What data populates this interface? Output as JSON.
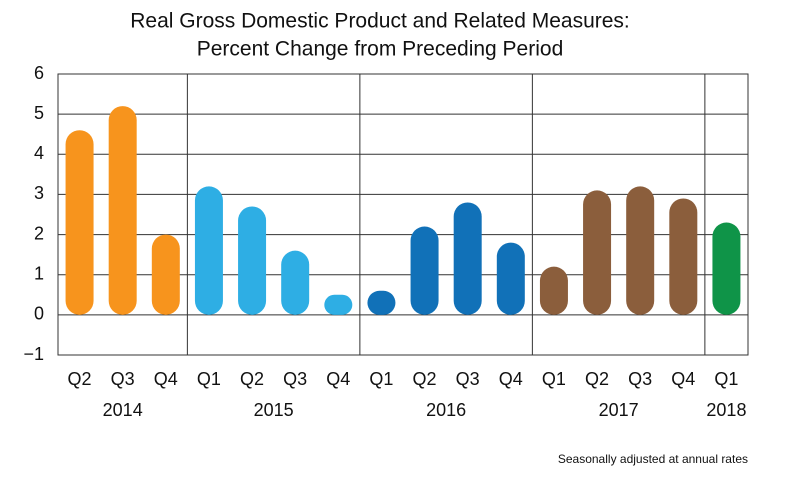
{
  "chart_data": {
    "type": "bar",
    "title": [
      "Real Gross Domestic Product and Related Measures:",
      "Percent Change from Preceding Period"
    ],
    "series": [
      {
        "name": "2014",
        "color": "#f7941d",
        "categories": [
          "Q2",
          "Q3",
          "Q4"
        ],
        "values": [
          4.6,
          5.2,
          2.0
        ]
      },
      {
        "name": "2015",
        "color": "#2eaee4",
        "categories": [
          "Q1",
          "Q2",
          "Q3",
          "Q4"
        ],
        "values": [
          3.2,
          2.7,
          1.6,
          0.5
        ]
      },
      {
        "name": "2016",
        "color": "#1171b8",
        "categories": [
          "Q1",
          "Q2",
          "Q3",
          "Q4"
        ],
        "values": [
          0.6,
          2.2,
          2.8,
          1.8
        ]
      },
      {
        "name": "2017",
        "color": "#8b5e3c",
        "categories": [
          "Q1",
          "Q2",
          "Q3",
          "Q4"
        ],
        "values": [
          1.2,
          3.1,
          3.2,
          2.9
        ]
      },
      {
        "name": "2018",
        "color": "#0f9448",
        "categories": [
          "Q1"
        ],
        "values": [
          2.3
        ]
      }
    ],
    "ylim": [
      -1,
      6
    ],
    "yticks": [
      {
        "value": -1,
        "label": "−1"
      },
      0,
      1,
      2,
      3,
      4,
      5,
      6
    ],
    "grid": true,
    "note": "Seasonally adjusted at annual rates"
  }
}
